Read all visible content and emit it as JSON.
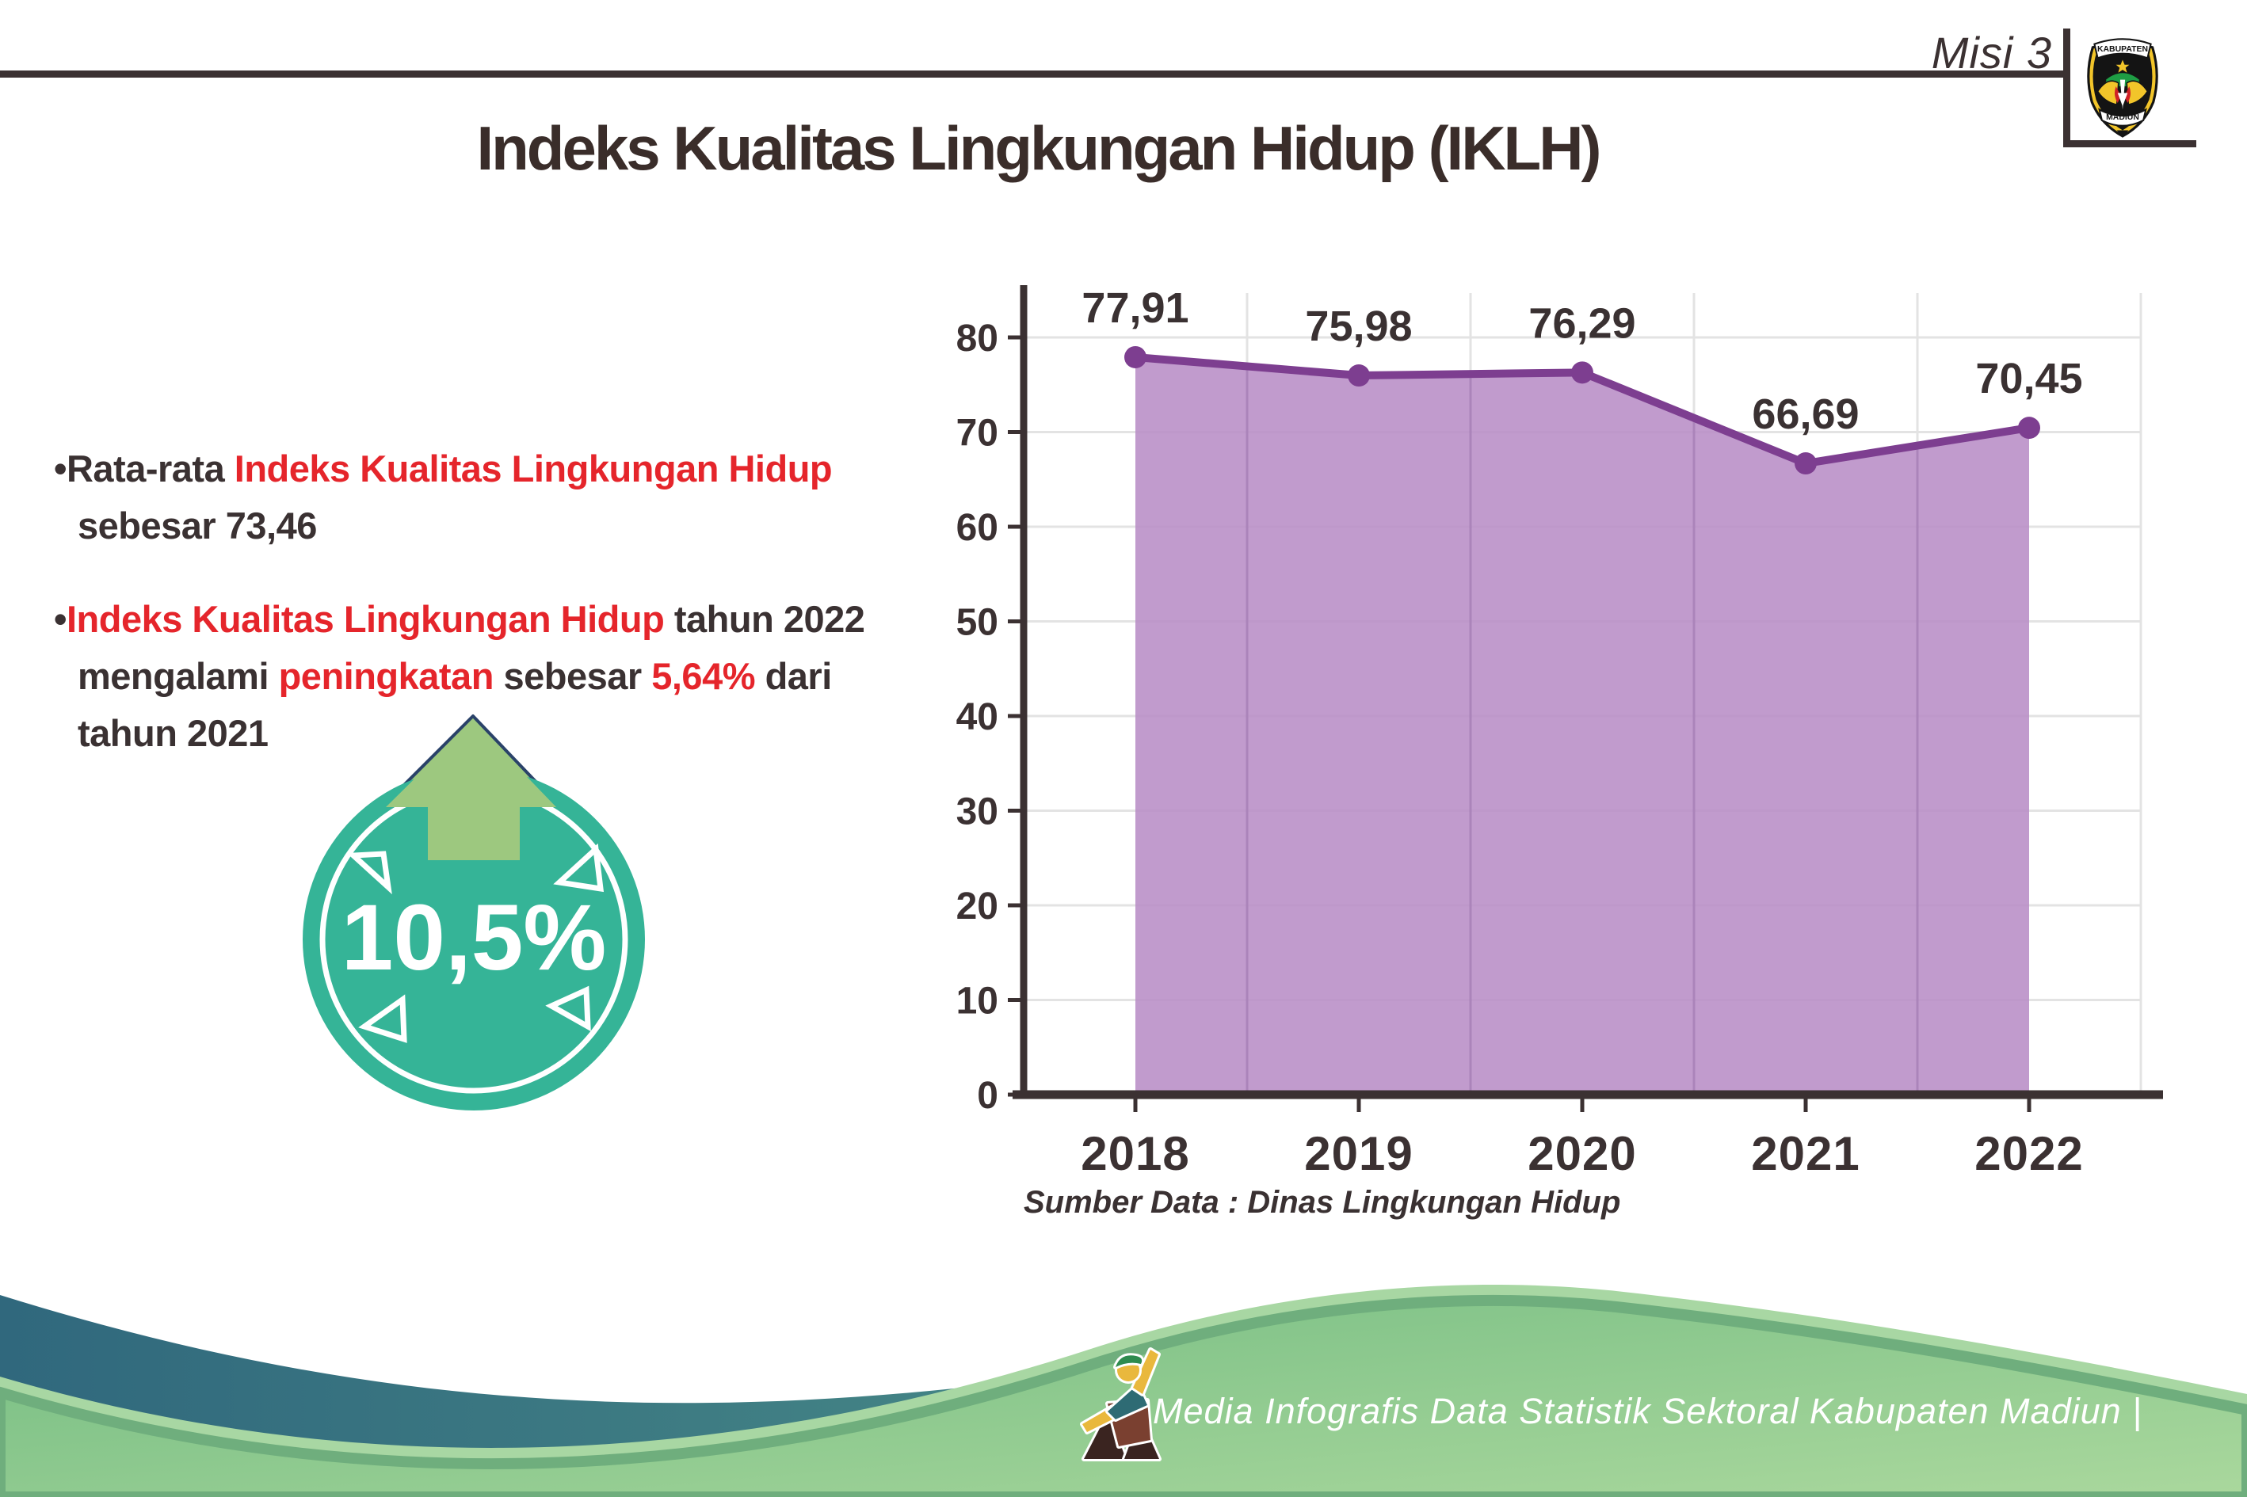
{
  "header": {
    "misi_label": "Misi 3",
    "title": "Indeks Kualitas Lingkungan Hidup (IKLH)"
  },
  "logo": {
    "top_text": "KABUPATEN",
    "bottom_text": "MADIUN"
  },
  "bullets": [
    {
      "segments": [
        {
          "text": "Rata-rata ",
          "color": "dark"
        },
        {
          "text": "Indeks Kualitas Lingkungan Hidup",
          "color": "red",
          "br": true
        },
        {
          "text": "sebesar 73,46",
          "color": "dark"
        }
      ]
    },
    {
      "segments": [
        {
          "text": "Indeks Kualitas Lingkungan Hidup",
          "color": "red"
        },
        {
          "text": " tahun 2022",
          "color": "dark",
          "br": true
        },
        {
          "text": "mengalami ",
          "color": "dark"
        },
        {
          "text": "peningkatan",
          "color": "red"
        },
        {
          "text": " sebesar ",
          "color": "dark"
        },
        {
          "text": "5,64%",
          "color": "red"
        },
        {
          "text": " dari",
          "color": "dark",
          "br": true
        },
        {
          "text": "tahun 2021",
          "color": "dark"
        }
      ]
    }
  ],
  "badge": {
    "value": "10,5%",
    "circle_color": "#35b497",
    "arrow_color": "#9dc87f",
    "arrow_outline_color": "#2a4269"
  },
  "chart_data": {
    "type": "area",
    "title": "",
    "categories": [
      "2018",
      "2019",
      "2020",
      "2021",
      "2022"
    ],
    "values": [
      77.91,
      75.98,
      76.29,
      66.69,
      70.45
    ],
    "point_labels": [
      "77,91",
      "75,98",
      "76,29",
      "66,69",
      "70,45"
    ],
    "xlabel": "",
    "ylabel": "",
    "ylim": [
      0,
      80
    ],
    "ytick_step": 10,
    "grid": true,
    "legend": "none",
    "line_color": "#7d3e90",
    "fill_color": "#b88cc5",
    "axis_color": "#3b3132",
    "grid_color": "#e3e3e3",
    "source_note": "Sumber Data : Dinas Lingkungan Hidup"
  },
  "footer": {
    "caption": "Media Infografis Data Statistik Sektoral Kabupaten Madiun |",
    "teal_wave_colors": [
      "#30687d",
      "#58a18e"
    ],
    "green_wave_colors": [
      "#74bc82",
      "#aad89d"
    ],
    "green_edge_color": "#6fae7d",
    "light_accent_color": "#a8d7a3"
  }
}
